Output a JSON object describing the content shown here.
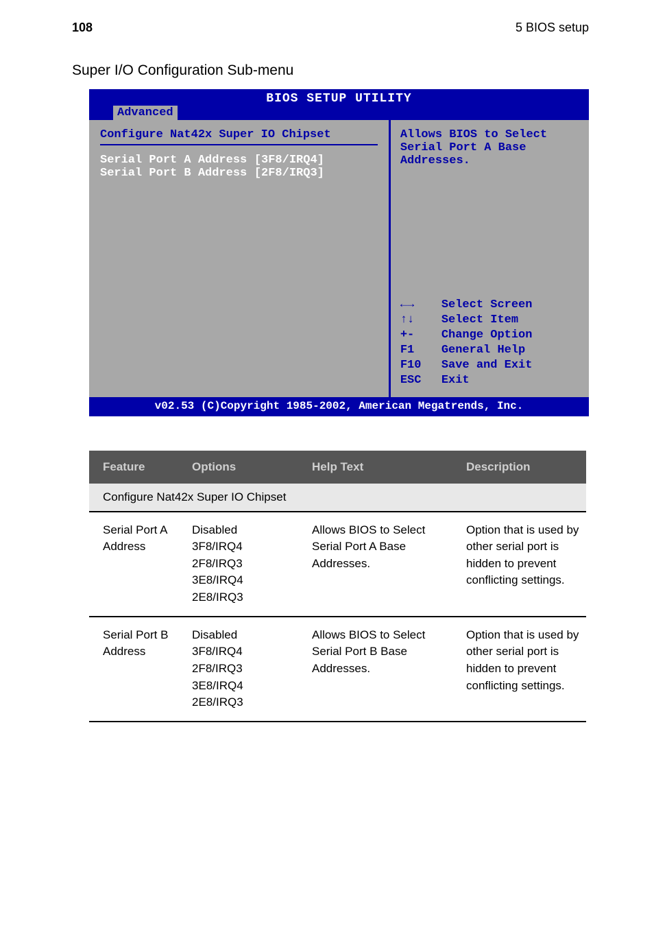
{
  "header": {
    "page_number": "108",
    "chapter": "5 BIOS setup"
  },
  "sub_heading": "Super I/O Configuration Sub-menu",
  "bios": {
    "title": "BIOS SETUP UTILITY",
    "tab": "Advanced",
    "section_title": "Configure Nat42x Super IO Chipset",
    "rows": [
      {
        "label": "Serial Port A Address",
        "value": "[3F8/IRQ4]"
      },
      {
        "label": "Serial Port B Address",
        "value": "[2F8/IRQ3]"
      }
    ],
    "help_text": "Allows BIOS to Select Serial Port A Base Addresses.",
    "nav": [
      {
        "key": "←→",
        "desc": "Select Screen"
      },
      {
        "key": "↑↓",
        "desc": "Select Item"
      },
      {
        "key": "+-",
        "desc": "Change Option"
      },
      {
        "key": "F1",
        "desc": "General Help"
      },
      {
        "key": "F10",
        "desc": "Save and Exit"
      },
      {
        "key": "ESC",
        "desc": "Exit"
      }
    ],
    "footer": "v02.53 (C)Copyright 1985-2002, American Megatrends, Inc."
  },
  "table": {
    "headers": {
      "feature": "Feature",
      "options": "Options",
      "help": "Help Text",
      "desc": "Description"
    },
    "subheader": "Configure Nat42x Super IO Chipset",
    "rows": [
      {
        "feature": "Serial Port A Address",
        "options": "Disabled\n3F8/IRQ4\n2F8/IRQ3\n3E8/IRQ4\n2E8/IRQ3",
        "help": "Allows BIOS to Select Serial Port A Base Addresses.",
        "desc": "Option that is used by other serial port is hidden to prevent conflicting settings."
      },
      {
        "feature": "Serial Port B Address",
        "options": "Disabled\n3F8/IRQ4\n2F8/IRQ3\n3E8/IRQ4\n2E8/IRQ3",
        "help": "Allows BIOS to Select Serial Port B Base Addresses.",
        "desc": "Option that is used by other serial port is hidden to prevent conflicting settings."
      }
    ]
  }
}
